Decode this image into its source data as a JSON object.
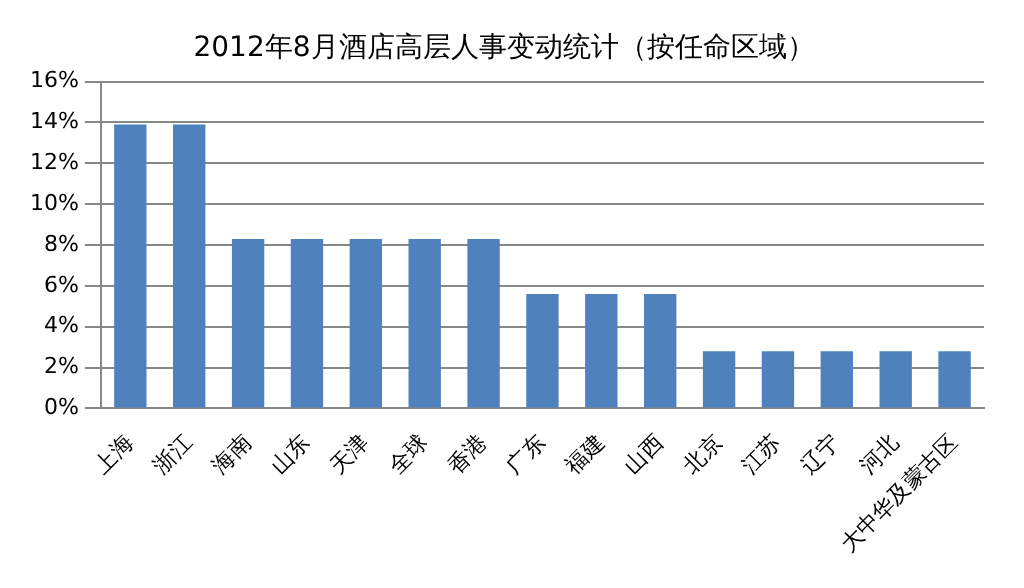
{
  "chart_data": {
    "type": "bar",
    "title": "2012年8月酒店高层人事变动统计（按任命区域）",
    "categories": [
      "上海",
      "浙江",
      "海南",
      "山东",
      "天津",
      "全球",
      "香港",
      "广东",
      "福建",
      "山西",
      "北京",
      "江苏",
      "辽宁",
      "河北",
      "大中华及蒙古区"
    ],
    "values": [
      13.9,
      13.9,
      8.3,
      8.3,
      8.3,
      8.3,
      8.3,
      5.6,
      5.6,
      5.6,
      2.8,
      2.8,
      2.8,
      2.8,
      2.8
    ],
    "color": "#4f81bd",
    "ylim": [
      0,
      16
    ],
    "yticks": [
      {
        "value": 0,
        "label": "0%"
      },
      {
        "value": 2,
        "label": "2%"
      },
      {
        "value": 4,
        "label": "4%"
      },
      {
        "value": 6,
        "label": "6%"
      },
      {
        "value": 8,
        "label": "8%"
      },
      {
        "value": 10,
        "label": "10%"
      },
      {
        "value": 12,
        "label": "12%"
      },
      {
        "value": 14,
        "label": "14%"
      },
      {
        "value": 16,
        "label": "16%"
      }
    ],
    "grid": "y",
    "legend": false
  }
}
